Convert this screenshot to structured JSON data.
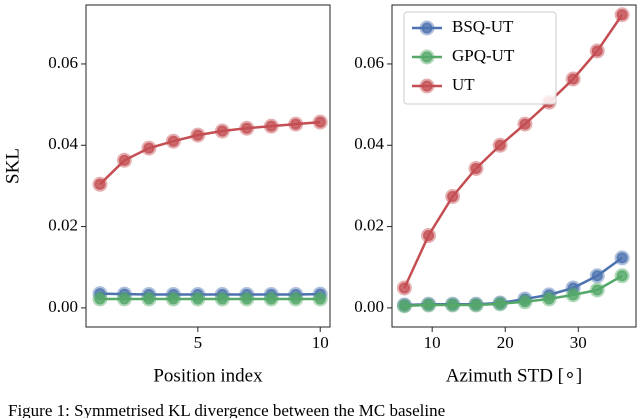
{
  "chart_data": [
    {
      "type": "line",
      "xlabel": "Position index",
      "ylabel": "SKL",
      "x": [
        1,
        2,
        3,
        4,
        5,
        6,
        7,
        8,
        9,
        10
      ],
      "xlim": [
        0.43,
        10.4
      ],
      "xticks": [
        5,
        10
      ],
      "ylim": [
        -0.0047,
        0.0745
      ],
      "yticks": [
        {
          "value": 0,
          "label": "0.00"
        },
        {
          "value": 0.02,
          "label": "0.02"
        },
        {
          "value": 0.04,
          "label": "0.04"
        },
        {
          "value": 0.06,
          "label": "0.06"
        }
      ],
      "series": [
        {
          "name": "BSQ-UT",
          "color": "#4c72b0",
          "values": [
            0.0035,
            0.0034,
            0.0033,
            0.0033,
            0.0033,
            0.0033,
            0.0033,
            0.0033,
            0.0033,
            0.0034
          ]
        },
        {
          "name": "GPQ-UT",
          "color": "#55a868",
          "values": [
            0.0022,
            0.0022,
            0.0022,
            0.0022,
            0.0022,
            0.0022,
            0.0022,
            0.0022,
            0.0022,
            0.0022
          ]
        },
        {
          "name": "UT",
          "color": "#c44e52",
          "values": [
            0.0304,
            0.0363,
            0.0393,
            0.041,
            0.0425,
            0.0435,
            0.0442,
            0.0447,
            0.0452,
            0.0457
          ]
        }
      ]
    },
    {
      "type": "line",
      "xlabel": "Azimuth STD [∘]",
      "legend": "upper left",
      "x": [
        6.2,
        9.5,
        12.8,
        16.0,
        19.3,
        22.7,
        26.0,
        29.3,
        32.6,
        36.0
      ],
      "xlim": [
        4.5,
        37.9
      ],
      "xticks": [
        10,
        20,
        30
      ],
      "ylim": [
        -0.0047,
        0.0745
      ],
      "yticks": [
        {
          "value": 0,
          "label": "0.00"
        },
        {
          "value": 0.02,
          "label": "0.02"
        },
        {
          "value": 0.04,
          "label": "0.04"
        },
        {
          "value": 0.06,
          "label": "0.06"
        }
      ],
      "series": [
        {
          "name": "BSQ-UT",
          "color": "#4c72b0",
          "values": [
            0.0007,
            0.0009,
            0.0009,
            0.0009,
            0.0012,
            0.0022,
            0.0032,
            0.0049,
            0.0079,
            0.0123
          ]
        },
        {
          "name": "GPQ-UT",
          "color": "#55a868",
          "values": [
            0.0005,
            0.0007,
            0.0007,
            0.0007,
            0.001,
            0.0015,
            0.0022,
            0.0032,
            0.0044,
            0.0079
          ]
        },
        {
          "name": "UT",
          "color": "#c44e52",
          "values": [
            0.0049,
            0.0178,
            0.0274,
            0.0343,
            0.04,
            0.0452,
            0.0506,
            0.0563,
            0.0632,
            0.0721
          ]
        }
      ]
    }
  ],
  "caption": "Figure 1: Symmetrised KL divergence between the MC baseline"
}
